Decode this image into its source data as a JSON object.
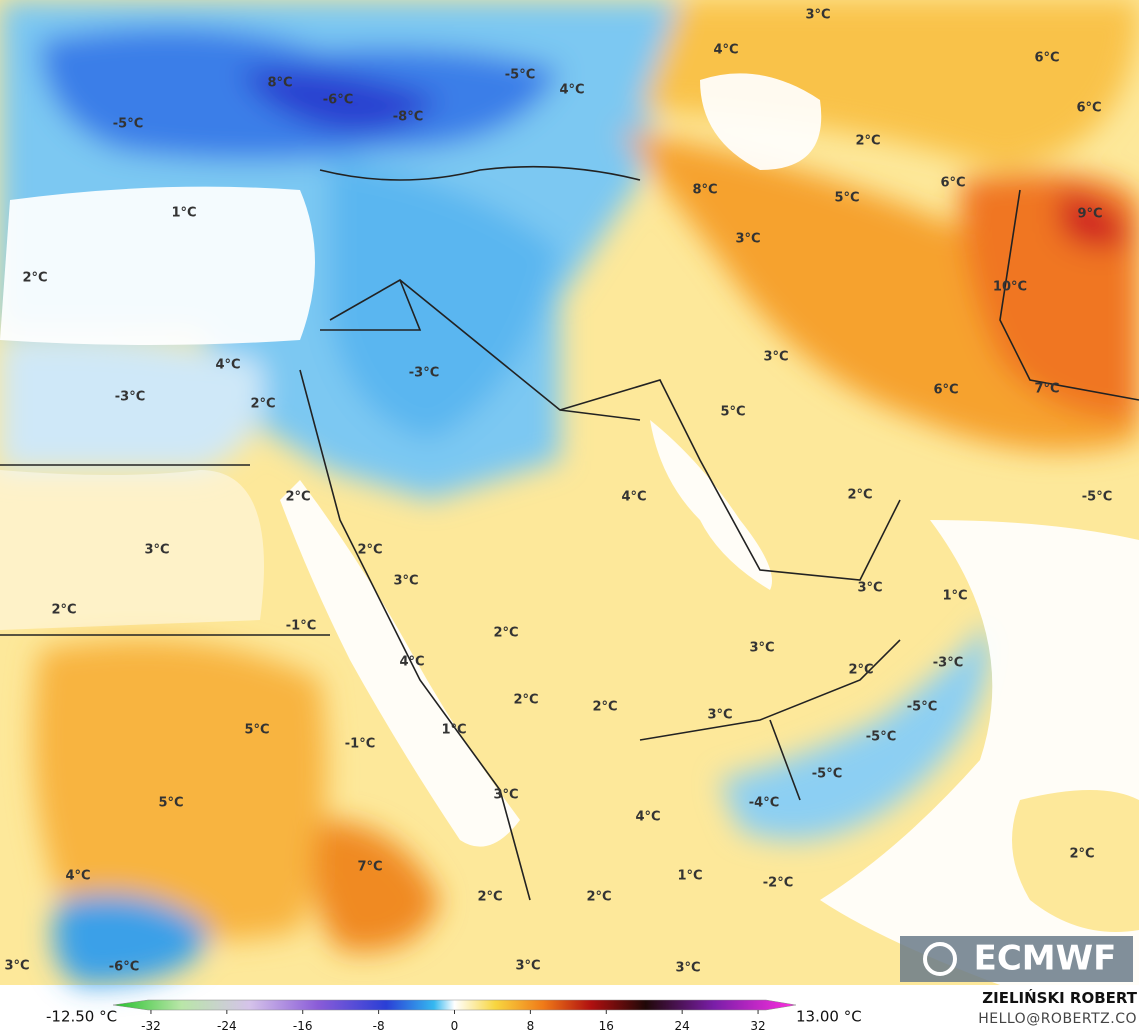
{
  "map": {
    "labels": [
      "3°C",
      "4°C",
      "6°C",
      "8°C",
      "-5°C",
      "-6°C",
      "4°C",
      "6°C",
      "-8°C",
      "-5°C",
      "2°C",
      "6°C",
      "8°C",
      "5°C",
      "1°C",
      "9°C",
      "3°C",
      "2°C",
      "10°C",
      "3°C",
      "4°C",
      "-3°C",
      "6°C",
      "7°C",
      "-3°C",
      "2°C",
      "5°C",
      "4°C",
      "2°C",
      "2°C",
      "-5°C",
      "3°C",
      "2°C",
      "3°C",
      "3°C",
      "1°C",
      "2°C",
      "-1°C",
      "2°C",
      "3°C",
      "4°C",
      "-3°C",
      "2°C",
      "2°C",
      "2°C",
      "-5°C",
      "1°C",
      "5°C",
      "3°C",
      "-5°C",
      "-1°C",
      "-5°C",
      "3°C",
      "5°C",
      "-4°C",
      "4°C",
      "7°C",
      "1°C",
      "4°C",
      "-2°C",
      "2°C",
      "2°C",
      "2°C",
      "3°C",
      "-6°C",
      "3°C",
      "3°C"
    ]
  },
  "colorbar": {
    "min_label": "-12.50 °C",
    "max_label": "13.00 °C",
    "ticks": [
      -32,
      -24,
      -16,
      -8,
      0,
      8,
      16,
      24,
      32
    ],
    "range": [
      -36,
      36
    ]
  },
  "credits": {
    "author": "ZIELIŃSKI ROBERT",
    "contact": "HELLO@ROBERTZ.CO",
    "logo": "ECMWF"
  }
}
